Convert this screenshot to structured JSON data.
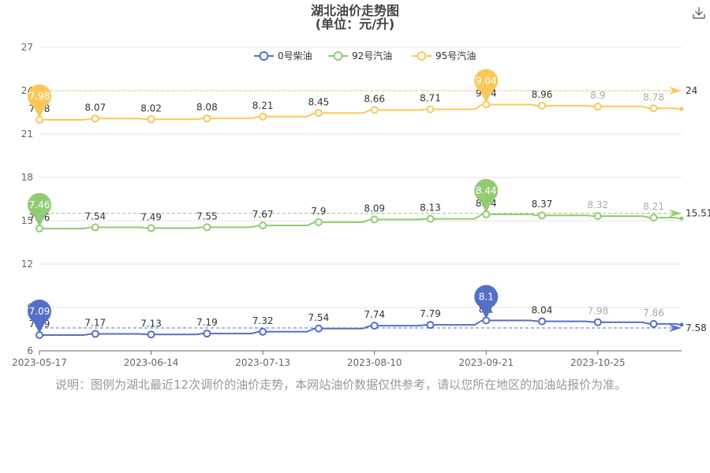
{
  "page": {
    "title_line1": "湖北油价走势图",
    "title_line2": "(单位：元/升)",
    "download_icon": "download-icon",
    "note": "说明：图例为湖北最近12次调价的油价走势，本网站油价数据仅供参考，请以您所在地区的加油站报价为准。"
  },
  "chart_data": {
    "type": "line",
    "x": [
      "2023-05-17",
      "2023-05-31",
      "2023-06-14",
      "2023-06-28",
      "2023-07-13",
      "2023-07-27",
      "2023-08-10",
      "2023-08-24",
      "2023-09-21",
      "2023-10-11",
      "2023-10-25",
      "2023-11-08"
    ],
    "x_tick_labels": [
      "2023-05-17",
      "2023-06-14",
      "2023-07-13",
      "2023-08-10",
      "2023-09-21",
      "2023-10-25"
    ],
    "y_ticks": [
      6,
      9,
      12,
      15,
      18,
      21,
      24,
      27
    ],
    "ylim": [
      6,
      27
    ],
    "grid": true,
    "legend_position": "top",
    "series": [
      {
        "name": "0号柴油",
        "color": "#5470c6",
        "display_offset": 0,
        "values": [
          7.09,
          7.17,
          7.13,
          7.19,
          7.32,
          7.54,
          7.74,
          7.79,
          8.1,
          8.04,
          7.98,
          7.86
        ],
        "max_value": 8.1,
        "min_value": 7.09,
        "average": 7.58
      },
      {
        "name": "92号汽油",
        "color": "#91cc75",
        "display_offset": 7,
        "values": [
          7.46,
          7.54,
          7.49,
          7.55,
          7.67,
          7.9,
          8.09,
          8.13,
          8.44,
          8.37,
          8.32,
          8.21
        ],
        "max_value": 8.44,
        "min_value": 7.46,
        "average": 15.51
      },
      {
        "name": "95号汽油",
        "color": "#fac858",
        "display_offset": 14,
        "values": [
          7.98,
          8.07,
          8.02,
          8.08,
          8.21,
          8.45,
          8.66,
          8.71,
          9.04,
          8.96,
          8.9,
          8.78
        ],
        "max_value": 9.04,
        "min_value": 7.98,
        "average": 24
      }
    ]
  }
}
